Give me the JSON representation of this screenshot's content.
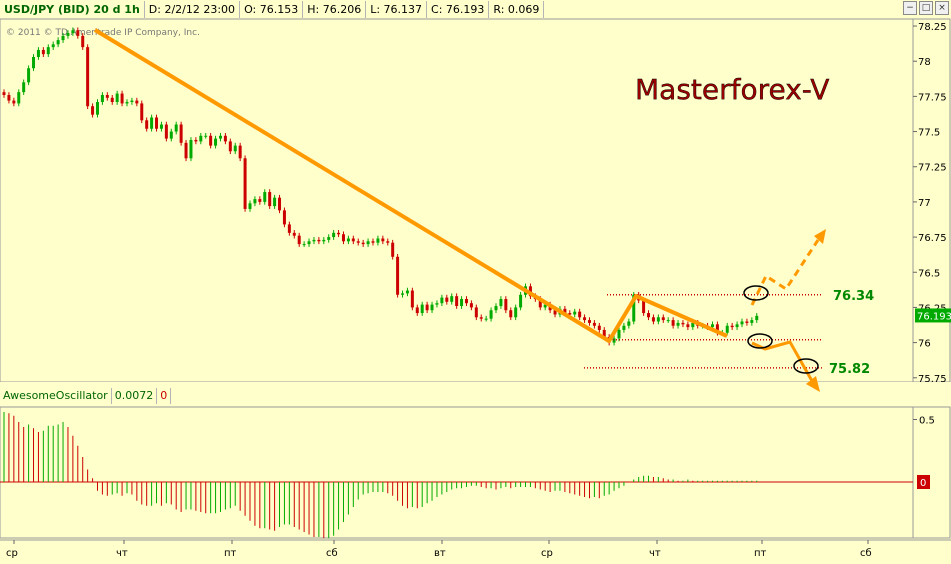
{
  "header": {
    "symbol": "USD/JPY (BID) 20 d 1h",
    "date": "D: 2/2/12 23:00",
    "open": "O: 76.153",
    "high": "H: 76.206",
    "low": "L: 76.137",
    "close": "C: 76.193",
    "range": "R: 0.069"
  },
  "window_buttons": [
    "−",
    "□",
    "×"
  ],
  "copyright": "© 2011 © TD Ameritrade IP Company, Inc.",
  "watermark": "Masterforex-V",
  "levels": {
    "upper": "76.34",
    "lower": "75.82"
  },
  "price_axis": {
    "ticks": [
      "78.25",
      "78",
      "77.75",
      "77.5",
      "77.25",
      "77",
      "76.75",
      "76.5",
      "76.25",
      "76",
      "75.75"
    ],
    "current": "76.193"
  },
  "oscillator": {
    "name": "AwesomeOscillator",
    "value": "0.0072",
    "zero_label": "0",
    "ticks": [
      "0.5"
    ],
    "zero_marker": "0"
  },
  "time_axis": [
    "ср",
    "чт",
    "пт",
    "сб",
    "вт",
    "ср",
    "чт",
    "пт",
    "сб"
  ],
  "colors": {
    "up": "#00aa00",
    "down": "#cc0000",
    "trend": "#ff9900",
    "watermark": "#990000"
  },
  "chart_data": {
    "type": "candlestick",
    "ylim": [
      75.72,
      78.3
    ],
    "series": [
      {
        "name": "USD/JPY (BID) 20 d 1h",
        "close": [
          77.76,
          77.72,
          77.7,
          77.78,
          77.85,
          77.95,
          78.03,
          78.08,
          78.05,
          78.1,
          78.12,
          78.15,
          78.18,
          78.2,
          78.22,
          78.18,
          78.1,
          77.68,
          77.62,
          77.71,
          77.76,
          77.74,
          77.71,
          77.77,
          77.7,
          77.71,
          77.72,
          77.7,
          77.58,
          77.52,
          77.6,
          77.52,
          77.55,
          77.45,
          77.5,
          77.55,
          77.42,
          77.31,
          77.44,
          77.43,
          77.47,
          77.47,
          77.4,
          77.45,
          77.47,
          77.43,
          77.36,
          77.4,
          77.31,
          76.95,
          76.99,
          77.02,
          77.0,
          77.07,
          76.97,
          77.03,
          76.94,
          76.84,
          76.78,
          76.76,
          76.7,
          76.7,
          76.72,
          76.73,
          76.72,
          76.73,
          76.75,
          76.78,
          76.77,
          76.72,
          76.74,
          76.72,
          76.71,
          76.7,
          76.72,
          76.71,
          76.74,
          76.72,
          76.71,
          76.61,
          76.34,
          76.35,
          76.37,
          76.25,
          76.21,
          76.27,
          76.23,
          76.27,
          76.28,
          76.32,
          76.29,
          76.33,
          76.26,
          76.31,
          76.28,
          76.25,
          76.18,
          76.17,
          76.17,
          76.23,
          76.26,
          76.31,
          76.23,
          76.18,
          76.25,
          76.34,
          76.4,
          76.33,
          76.31,
          76.25,
          76.27,
          76.23,
          76.2,
          76.24,
          76.21,
          76.2,
          76.22,
          76.18,
          76.16,
          76.14,
          76.12,
          76.09,
          76.04,
          76.0,
          76.03,
          76.09,
          76.12,
          76.15,
          76.34,
          76.3,
          76.21,
          76.18,
          76.15,
          76.18,
          76.16,
          76.16,
          76.12,
          76.14,
          76.13,
          76.11,
          76.14,
          76.12,
          76.12,
          76.11,
          76.13,
          76.07,
          76.07,
          76.12,
          76.11,
          76.13,
          76.15,
          76.14,
          76.16,
          76.19
        ]
      }
    ],
    "oscillator": {
      "name": "AwesomeOscillator",
      "values": [
        0.56,
        0.55,
        0.53,
        0.48,
        0.44,
        0.46,
        0.43,
        0.4,
        0.41,
        0.45,
        0.45,
        0.46,
        0.48,
        0.44,
        0.37,
        0.29,
        0.2,
        0.1,
        0.03,
        -0.07,
        -0.1,
        -0.11,
        -0.1,
        -0.09,
        -0.11,
        -0.09,
        -0.1,
        -0.15,
        -0.18,
        -0.19,
        -0.19,
        -0.17,
        -0.19,
        -0.17,
        -0.18,
        -0.22,
        -0.24,
        -0.22,
        -0.22,
        -0.23,
        -0.24,
        -0.25,
        -0.25,
        -0.25,
        -0.24,
        -0.22,
        -0.21,
        -0.19,
        -0.23,
        -0.27,
        -0.31,
        -0.35,
        -0.37,
        -0.37,
        -0.38,
        -0.39,
        -0.36,
        -0.34,
        -0.34,
        -0.36,
        -0.38,
        -0.4,
        -0.42,
        -0.44,
        -0.44,
        -0.45,
        -0.45,
        -0.43,
        -0.38,
        -0.32,
        -0.26,
        -0.2,
        -0.14,
        -0.1,
        -0.09,
        -0.08,
        -0.08,
        -0.08,
        -0.09,
        -0.11,
        -0.15,
        -0.19,
        -0.21,
        -0.2,
        -0.21,
        -0.2,
        -0.17,
        -0.15,
        -0.12,
        -0.1,
        -0.08,
        -0.06,
        -0.05,
        -0.05,
        -0.04,
        -0.03,
        -0.03,
        -0.04,
        -0.05,
        -0.05,
        -0.06,
        -0.05,
        -0.04,
        -0.05,
        -0.04,
        -0.04,
        -0.04,
        -0.04,
        -0.05,
        -0.06,
        -0.07,
        -0.08,
        -0.07,
        -0.07,
        -0.08,
        -0.09,
        -0.1,
        -0.11,
        -0.12,
        -0.13,
        -0.12,
        -0.13,
        -0.11,
        -0.1,
        -0.07,
        -0.05,
        -0.03,
        0.0,
        0.02,
        0.04,
        0.05,
        0.05,
        0.04,
        0.04,
        0.03,
        0.02,
        0.02,
        0.01,
        0.01,
        0.02,
        0.01,
        0.01,
        0.01,
        0.01,
        0.01,
        0.01,
        0.01,
        0.01,
        0.01,
        0.01,
        0.01,
        0.01,
        0.01,
        0.01
      ]
    }
  }
}
